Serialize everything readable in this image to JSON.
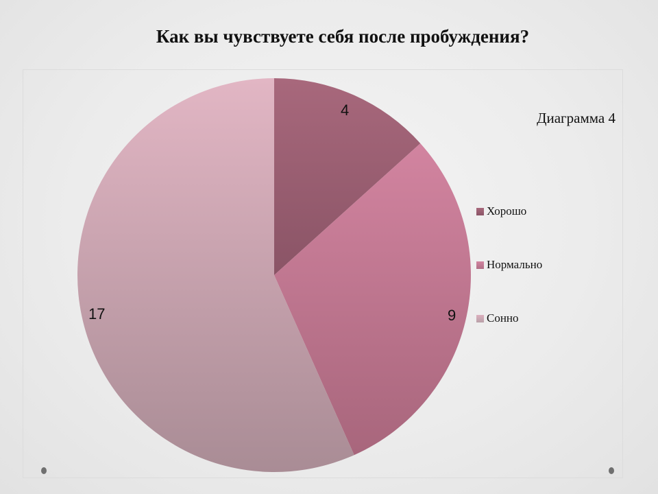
{
  "slide": {
    "title": "Как вы чувствуете себя после пробуждения?",
    "subtitle": "Диаграмма 4"
  },
  "legend": {
    "items": [
      {
        "label": "Хорошо",
        "color": "#9a5c70"
      },
      {
        "label": "Нормально",
        "color": "#c07a92"
      },
      {
        "label": "Сонно",
        "color": "#cfa2b2"
      }
    ]
  },
  "labels": {
    "khorosho": "4",
    "normalno": "9",
    "sonno": "17"
  },
  "chart_data": {
    "type": "pie",
    "title": "Как вы чувствуете себя после пробуждения?",
    "subtitle": "Диаграмма 4",
    "categories": [
      "Хорошо",
      "Нормально",
      "Сонно"
    ],
    "values": [
      4,
      9,
      17
    ],
    "colors": [
      "#9a5c70",
      "#c07a92",
      "#cfa2b2"
    ],
    "data_labels": true,
    "legend_position": "right",
    "start_angle_deg": 0,
    "direction": "clockwise"
  }
}
